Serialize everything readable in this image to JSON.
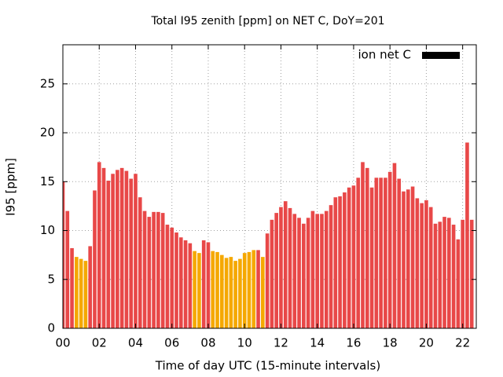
{
  "chart_data": {
    "type": "bar",
    "title": "Total I95 zenith [ppm] on NET C, DoY=201",
    "xlabel": "Time of day UTC (15-minute intervals)",
    "ylabel": "I95 [ppm]",
    "x": [
      0,
      0.25,
      0.5,
      0.75,
      1,
      1.25,
      1.5,
      1.75,
      2,
      2.25,
      2.5,
      2.75,
      3,
      3.25,
      3.5,
      3.75,
      4,
      4.25,
      4.5,
      4.75,
      5,
      5.25,
      5.5,
      5.75,
      6,
      6.25,
      6.5,
      6.75,
      7,
      7.25,
      7.5,
      7.75,
      8,
      8.25,
      8.5,
      8.75,
      9,
      9.25,
      9.5,
      9.75,
      10,
      10.25,
      10.5,
      10.75,
      11,
      11.25,
      11.5,
      11.75,
      12,
      12.25,
      12.5,
      12.75,
      13,
      13.25,
      13.5,
      13.75,
      14,
      14.25,
      14.5,
      14.75,
      15,
      15.25,
      15.5,
      15.75,
      16,
      16.25,
      16.5,
      16.75,
      17,
      17.25,
      17.5,
      17.75,
      18,
      18.25,
      18.5,
      18.75,
      19,
      19.25,
      19.5,
      19.75,
      20,
      20.25,
      20.5,
      20.75,
      21,
      21.25,
      21.5,
      21.75,
      22,
      22.25,
      22.5
    ],
    "series": [
      {
        "name": "ion net C",
        "color": "#000000",
        "values": [
          15,
          12,
          8.2,
          7.3,
          7.1,
          6.9,
          8.4,
          14.1,
          17.0,
          16.4,
          15.1,
          15.8,
          16.2,
          16.4,
          16.1,
          15.3,
          15.8,
          13.4,
          12.0,
          11.4,
          11.9,
          11.9,
          11.8,
          10.6,
          10.3,
          9.8,
          9.3,
          9.0,
          8.7,
          7.9,
          7.7,
          9.0,
          8.8,
          7.9,
          7.8,
          7.5,
          7.2,
          7.3,
          6.9,
          7.1,
          7.7,
          7.8,
          8.0,
          8.0,
          7.3,
          9.7,
          11.1,
          11.8,
          12.4,
          13.0,
          12.3,
          11.7,
          11.3,
          10.7,
          11.3,
          12.0,
          11.7,
          11.7,
          12.0,
          12.6,
          13.4,
          13.5,
          13.9,
          14.4,
          14.6,
          15.4,
          17.0,
          16.4,
          14.4,
          15.4,
          15.4,
          15.4,
          16.0,
          16.9,
          15.3,
          14.0,
          14.2,
          14.5,
          13.3,
          12.8,
          13.1,
          12.4,
          10.7,
          10.9,
          11.4,
          11.3,
          10.6,
          9.1,
          11.1,
          19.0,
          11.1
        ],
        "bar_colors": [
          "#e84848",
          "#e84848",
          "#e84848",
          "#f5a800",
          "#f5a800",
          "#f5a800",
          "#e84848",
          "#e84848",
          "#e84848",
          "#e84848",
          "#e84848",
          "#e84848",
          "#e84848",
          "#e84848",
          "#e84848",
          "#e84848",
          "#e84848",
          "#e84848",
          "#e84848",
          "#e84848",
          "#e84848",
          "#e84848",
          "#e84848",
          "#e84848",
          "#e84848",
          "#e84848",
          "#e84848",
          "#e84848",
          "#e84848",
          "#f5a800",
          "#f5a800",
          "#e84848",
          "#e84848",
          "#f5a800",
          "#f5a800",
          "#f5a800",
          "#f5a800",
          "#f5a800",
          "#f5a800",
          "#f5a800",
          "#f5a800",
          "#f5a800",
          "#f5a800",
          "#e84848",
          "#f5a800",
          "#e84848",
          "#e84848",
          "#e84848",
          "#e84848",
          "#e84848",
          "#e84848",
          "#e84848",
          "#e84848",
          "#e84848",
          "#e84848",
          "#e84848",
          "#e84848",
          "#e84848",
          "#e84848",
          "#e84848",
          "#e84848",
          "#e84848",
          "#e84848",
          "#e84848",
          "#e84848",
          "#e84848",
          "#e84848",
          "#e84848",
          "#e84848",
          "#e84848",
          "#e84848",
          "#e84848",
          "#e84848",
          "#e84848",
          "#e84848",
          "#e84848",
          "#e84848",
          "#e84848",
          "#e84848",
          "#e84848",
          "#e84848",
          "#e84848",
          "#e84848",
          "#e84848",
          "#e84848",
          "#e84848",
          "#e84848",
          "#e84848",
          "#e84848",
          "#e84848",
          "#e84848"
        ]
      }
    ],
    "xlim": [
      0,
      22.75
    ],
    "xticks": [
      {
        "value": 0,
        "label": "00"
      },
      {
        "value": 2,
        "label": "02"
      },
      {
        "value": 4,
        "label": "04"
      },
      {
        "value": 6,
        "label": "06"
      },
      {
        "value": 8,
        "label": "08"
      },
      {
        "value": 10,
        "label": "10"
      },
      {
        "value": 12,
        "label": "12"
      },
      {
        "value": 14,
        "label": "14"
      },
      {
        "value": 16,
        "label": "16"
      },
      {
        "value": 18,
        "label": "18"
      },
      {
        "value": 20,
        "label": "20"
      },
      {
        "value": 22,
        "label": "22"
      }
    ],
    "ylim": [
      0,
      29
    ],
    "yticks": [
      0,
      5,
      10,
      15,
      20,
      25
    ],
    "grid": true,
    "legend": "top-right"
  }
}
